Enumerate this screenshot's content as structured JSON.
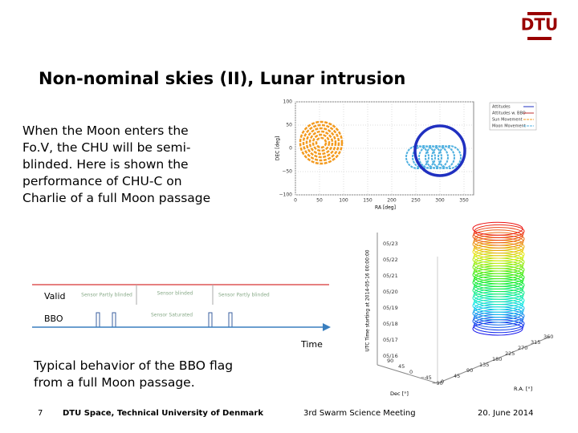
{
  "header": {
    "logo": "DTU",
    "title": "Non-nominal skies (II), Lunar intrusion"
  },
  "body": {
    "lines": [
      "When the Moon enters the",
      "Fo.V, the CHU will be semi-",
      "blinded. Here is shown the",
      "performance of CHU-C on",
      "Charlie of a full Moon passage"
    ]
  },
  "sky_plot": {
    "y_label": "DEC [deg]",
    "x_label": "RA [deg]",
    "yticks": [
      "100",
      "50",
      "0",
      "−50",
      "−100"
    ],
    "xticks": [
      "0",
      "50",
      "100",
      "150",
      "200",
      "250",
      "300",
      "350"
    ],
    "legend": [
      "Attitudes",
      "Attitudes w. BBO",
      "Sun Movement",
      "Moon Movement"
    ]
  },
  "bbo_diagram": {
    "valid": "Valid",
    "bbo": "BBO",
    "time": "Time",
    "notes": [
      "Sensor Partly blinded",
      "Sensor blinded",
      "Sensor Partly blinded",
      "Sensor Saturated"
    ]
  },
  "caption": {
    "lines": [
      "Typical behavior of the BBO flag",
      "from a full Moon passage."
    ]
  },
  "cylinder_plot": {
    "z_label": "UTC Time starting at 2014-05-16 00:00:00",
    "zticks": [
      "05/23",
      "05/22",
      "05/21",
      "05/20",
      "05/19",
      "05/18",
      "05/17",
      "05/16"
    ],
    "dec_label": "Dec [°]",
    "dec_ticks": [
      "90",
      "45",
      "0",
      "−45",
      "−90"
    ],
    "ra_label": "R.A. [°]",
    "ra_ticks": [
      "0",
      "45",
      "90",
      "135",
      "180",
      "225",
      "270",
      "315",
      "360"
    ]
  },
  "footer": {
    "page": "7",
    "org": "DTU Space, Technical University of Denmark",
    "event": "3rd Swarm Science Meeting",
    "date": "20. June 2014"
  }
}
